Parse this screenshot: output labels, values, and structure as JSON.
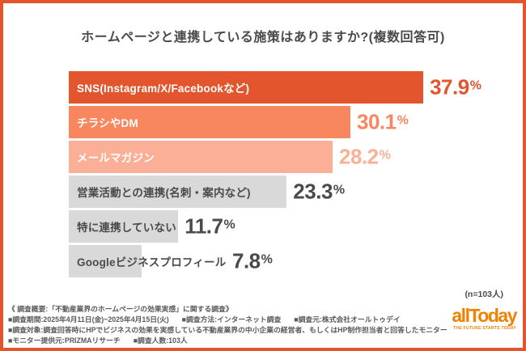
{
  "title": "ホームページと連携している施策はありますか?(複数回答可)",
  "n_note": "(n=103人)",
  "chart_data": {
    "type": "bar",
    "orientation": "horizontal",
    "unit": "%",
    "title": "ホームページと連携している施策はありますか?(複数回答可)",
    "sample_size": "n=103人",
    "xlim": [
      0,
      40
    ],
    "grid": false,
    "legend": "none",
    "categories": [
      "SNS(Instagram/X/Facebookなど)",
      "チラシやDM",
      "メールマガジン",
      "営業活動との連携(名刺・案内など)",
      "特に連携していない",
      "Googleビジネスプロフィール"
    ],
    "values": [
      37.9,
      30.1,
      28.2,
      23.3,
      11.7,
      7.8
    ],
    "bars": [
      {
        "label": "SNS(Instagram/X/Facebookなど)",
        "value": 37.9,
        "display": "37.9%",
        "bar_color": "#E2552D",
        "label_color": "#FFFFFF",
        "value_color": "#E2552D"
      },
      {
        "label": "チラシやDM",
        "value": 30.1,
        "display": "30.1%",
        "bar_color": "#F8875F",
        "label_color": "#FFFFFF",
        "value_color": "#F8875F"
      },
      {
        "label": "メールマガジン",
        "value": 28.2,
        "display": "28.2%",
        "bar_color": "#FAAF96",
        "label_color": "#FFFFFF",
        "value_color": "#FAAF96"
      },
      {
        "label": "営業活動との連携(名刺・案内など)",
        "value": 23.3,
        "display": "23.3%",
        "bar_color": "#D9D9D9",
        "label_color": "#4A4A4A",
        "value_color": "#4A4A4A"
      },
      {
        "label": "特に連携していない",
        "value": 11.7,
        "display": "11.7%",
        "bar_color": "#D9D9D9",
        "label_color": "#4A4A4A",
        "value_color": "#4A4A4A"
      },
      {
        "label": "Googleビジネスプロフィール",
        "value": 7.8,
        "display": "7.8%",
        "bar_color": "#D9D9D9",
        "label_color": "#4A4A4A",
        "value_color": "#4A4A4A"
      }
    ]
  },
  "footer": {
    "lines": [
      [
        "《 調査概要:「不動産業界のホームページの効果実感」に関する調査》"
      ],
      [
        "■調査期間:2025年4月11日(金)~2025年4月15日(火)",
        "■調査方法:インターネット調査",
        "■調査元:株式会社オールトゥデイ"
      ],
      [
        "■調査対象:調査回答時にHPでビジネスの効果を実感している不動産業界の中小企業の経営者、もしくはHP制作担当者と回答したモニター"
      ],
      [
        "■モニター提供元:PRIZMAリサーチ",
        "■調査人数:103人"
      ]
    ]
  },
  "logo": {
    "text": "allToday",
    "tagline": "THE FUTURE STARTS TODAY"
  },
  "colors": {
    "frame_border": "#E2552D",
    "accent_dark_orange": "#E2552D",
    "accent_salmon": "#F8875F",
    "accent_peach": "#FAAF96",
    "gray_bar": "#D9D9D9",
    "text_dark": "#4A4A4A",
    "footer_text": "#595959",
    "logo_orange": "#EF8200"
  }
}
